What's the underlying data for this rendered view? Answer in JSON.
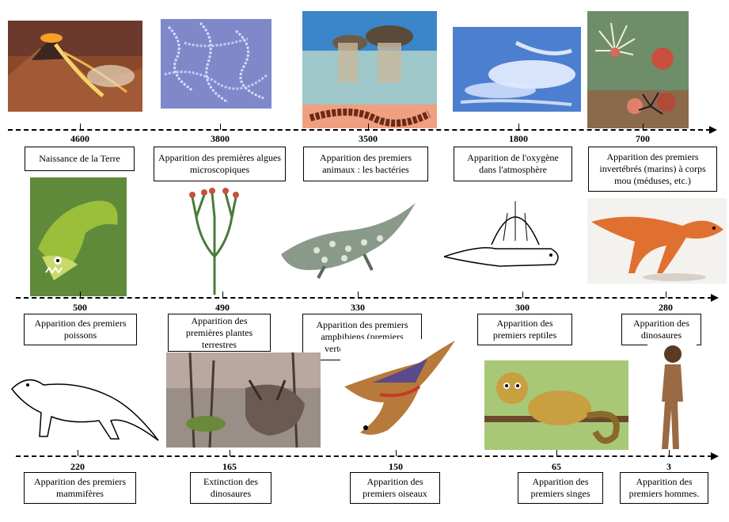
{
  "events": [
    {
      "year": "4600",
      "label": "Naissance de la Terre",
      "image": "volcano-icon"
    },
    {
      "year": "3800",
      "label": "Apparition des premières algues microscopiques",
      "image": "algae-icon"
    },
    {
      "year": "3500",
      "label": "Apparition des premiers animaux : les bactéries",
      "image": "stromatolite-icon"
    },
    {
      "year": "1800",
      "label": "Apparition de l'oxygène dans l'atmosphère",
      "image": "sky-icon"
    },
    {
      "year": "700",
      "label": "Apparition des premiers invertébrés (marins) à corps mou (méduses, etc.)",
      "image": "sea-anemone-icon"
    },
    {
      "year": "500",
      "label": "Apparition des premiers poissons",
      "image": "fish-icon"
    },
    {
      "year": "490",
      "label": "Apparition des premières plantes terrestres",
      "image": "plant-icon"
    },
    {
      "year": "330",
      "label": "Apparition des premiers amphibiens (premiers vertébrés terrestres)",
      "image": "amphibian-icon"
    },
    {
      "year": "300",
      "label": "Apparition des premiers reptiles",
      "image": "reptile-icon"
    },
    {
      "year": "280",
      "label": "Apparition des dinosaures",
      "image": "dinosaur-icon"
    },
    {
      "year": "220",
      "label": "Apparition des premiers mammifères",
      "image": "mammal-icon"
    },
    {
      "year": "165",
      "label": "Extinction des dinosaures",
      "image": "triceratops-skull-icon"
    },
    {
      "year": "150",
      "label": "Apparition des premiers oiseaux",
      "image": "bird-icon"
    },
    {
      "year": "65",
      "label": "Apparition des premiers singes",
      "image": "monkey-icon"
    },
    {
      "year": "3",
      "label": "Apparition des premiers hommes.",
      "image": "early-human-icon"
    }
  ]
}
